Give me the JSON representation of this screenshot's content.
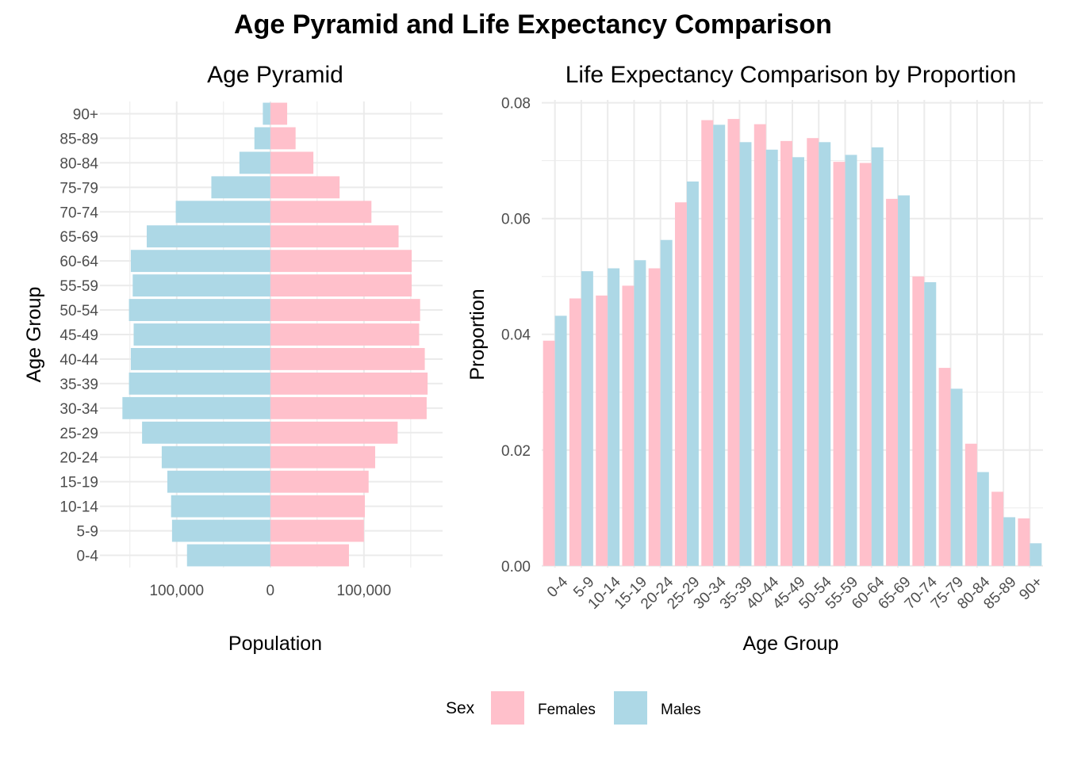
{
  "title": "Age Pyramid and Life Expectancy Comparison",
  "colors": {
    "Females": "#FFC0CB",
    "Males": "#ADD8E6",
    "grid": "#EBEBEB"
  },
  "legend": {
    "title": "Sex",
    "entries": [
      {
        "label": "Females",
        "color": "#FFC0CB"
      },
      {
        "label": "Males",
        "color": "#ADD8E6"
      }
    ]
  },
  "chart_data": [
    {
      "type": "bar",
      "title": "Age Pyramid",
      "xlabel": "Population",
      "ylabel": "Age Group",
      "orientation": "horizontal",
      "categories": [
        "0-4",
        "5-9",
        "10-14",
        "15-19",
        "20-24",
        "25-29",
        "30-34",
        "35-39",
        "40-44",
        "45-49",
        "50-54",
        "55-59",
        "60-64",
        "65-69",
        "70-74",
        "75-79",
        "80-84",
        "85-89",
        "90+"
      ],
      "series": [
        {
          "name": "Females",
          "values": [
            84000,
            100000,
            101000,
            105000,
            112000,
            136000,
            167000,
            168000,
            165000,
            159000,
            160000,
            151000,
            151000,
            137000,
            108000,
            74000,
            46000,
            27000,
            18000
          ]
        },
        {
          "name": "Males",
          "values": [
            -89000,
            -105000,
            -106000,
            -110000,
            -116000,
            -137000,
            -158000,
            -151000,
            -149000,
            -146000,
            -151000,
            -147000,
            -149000,
            -132000,
            -101000,
            -63000,
            -33000,
            -17000,
            -8000
          ]
        }
      ],
      "xlim": [
        -182000,
        184000
      ],
      "xticks": [
        -100000,
        0,
        100000
      ],
      "xtick_labels": [
        "100,000",
        "0",
        "100,000"
      ],
      "xgrid_minor": [
        -150000,
        -50000,
        50000,
        150000
      ],
      "grid": true,
      "legend": "bottom"
    },
    {
      "type": "bar",
      "title": "Life Expectancy Comparison by Proportion",
      "xlabel": "Age Group",
      "ylabel": "Proportion",
      "categories": [
        "0-4",
        "5-9",
        "10-14",
        "15-19",
        "20-24",
        "25-29",
        "30-34",
        "35-39",
        "40-44",
        "45-49",
        "50-54",
        "55-59",
        "60-64",
        "65-69",
        "70-74",
        "75-79",
        "80-84",
        "85-89",
        "90+"
      ],
      "series": [
        {
          "name": "Females",
          "values": [
            0.0389,
            0.0462,
            0.0467,
            0.0484,
            0.0514,
            0.0628,
            0.077,
            0.0772,
            0.0763,
            0.0734,
            0.0739,
            0.0698,
            0.0696,
            0.0634,
            0.05,
            0.0342,
            0.0211,
            0.0128,
            0.0082
          ]
        },
        {
          "name": "Males",
          "values": [
            0.0432,
            0.0509,
            0.0514,
            0.0528,
            0.0563,
            0.0664,
            0.0762,
            0.0732,
            0.0719,
            0.0706,
            0.0732,
            0.071,
            0.0723,
            0.064,
            0.049,
            0.0306,
            0.0162,
            0.0084,
            0.0039
          ]
        }
      ],
      "ylim": [
        -0.0003,
        0.0805
      ],
      "yticks": [
        0.0,
        0.02,
        0.04,
        0.06,
        0.08
      ],
      "ytick_labels": [
        "0.00",
        "0.02",
        "0.04",
        "0.06",
        "0.08"
      ],
      "grid": true,
      "legend": "bottom"
    }
  ]
}
